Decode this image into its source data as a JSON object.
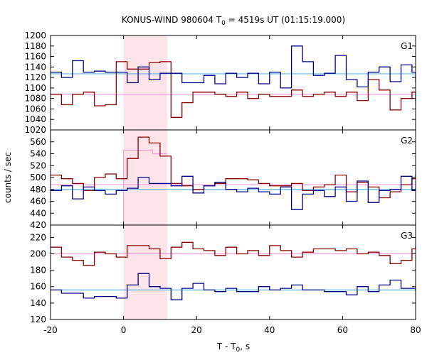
{
  "title": {
    "prefix": "KONUS-WIND 980604 T",
    "sub": "0",
    "suffix": " = 4519s UT (01:15:19.000)"
  },
  "xlabel": {
    "prefix": "T - T",
    "sub": "0",
    "suffix": ", s"
  },
  "ylabel": "counts / sec",
  "colors": {
    "red": "#8b0000",
    "blue": "#00008b",
    "pink_line": "#ff9ad5",
    "cyan_line": "#5fb7e8",
    "shade": "#fde4e8"
  },
  "chart_data": {
    "type": "line",
    "subtype": "step",
    "shared_x": {
      "range": [
        -20,
        80
      ],
      "ticks": [
        -20,
        0,
        20,
        40,
        60,
        80
      ],
      "tick_labels": [
        "-20",
        "0",
        "20",
        "40",
        "60",
        "80"
      ]
    },
    "bin_edges": [
      -20,
      -17,
      -14,
      -11,
      -8,
      -5,
      -2,
      1,
      4,
      7,
      10,
      13,
      16,
      19,
      22,
      25,
      28,
      31,
      34,
      37,
      40,
      43,
      46,
      49,
      52,
      55,
      58,
      61,
      64,
      67,
      70,
      73,
      76,
      79,
      80
    ],
    "shaded_interval": [
      0,
      12
    ],
    "panels": [
      {
        "label": "G1",
        "ylim": [
          1020,
          1200
        ],
        "yticks": [
          1020,
          1040,
          1060,
          1080,
          1100,
          1120,
          1140,
          1160,
          1180,
          1200
        ],
        "ytick_labels": [
          "1020",
          "1040",
          "1060",
          "1080",
          "1100",
          "1120",
          "1140",
          "1160",
          "1180",
          "1200"
        ],
        "series": [
          {
            "color": "red",
            "values": [
              1088,
              1068,
              1088,
              1092,
              1066,
              1068,
              1150,
              1136,
              1136,
              1148,
              1150,
              1044,
              1072,
              1092,
              1092,
              1088,
              1084,
              1092,
              1080,
              1088,
              1084,
              1084,
              1096,
              1084,
              1088,
              1092,
              1084,
              1092,
              1076,
              1116,
              1096,
              1058,
              1080,
              1092,
              1068
            ]
          },
          {
            "color": "blue",
            "values": [
              1130,
              1120,
              1152,
              1130,
              1132,
              1130,
              1130,
              1110,
              1140,
              1116,
              1128,
              1128,
              1110,
              1110,
              1124,
              1108,
              1128,
              1120,
              1128,
              1108,
              1130,
              1100,
              1180,
              1150,
              1124,
              1128,
              1162,
              1116,
              1102,
              1130,
              1140,
              1112,
              1144,
              1130,
              1110
            ]
          }
        ],
        "baselines": [
          {
            "color": "cyan_line",
            "value": 1127
          },
          {
            "color": "pink_line",
            "value": 1088
          }
        ]
      },
      {
        "label": "G2",
        "ylim": [
          420,
          580
        ],
        "yticks": [
          420,
          440,
          460,
          480,
          500,
          520,
          540,
          560
        ],
        "ytick_labels": [
          "420",
          "440",
          "460",
          "480",
          "500",
          "520",
          "540",
          "560"
        ],
        "series": [
          {
            "color": "red",
            "values": [
              504,
              498,
              490,
              478,
              500,
              506,
              498,
              532,
              568,
              558,
              536,
              490,
              486,
              480,
              486,
              490,
              498,
              498,
              496,
              490,
              486,
              486,
              490,
              478,
              484,
              488,
              504,
              476,
              492,
              484,
              466,
              476,
              488,
              498,
              506
            ]
          },
          {
            "color": "blue",
            "values": [
              478,
              486,
              464,
              484,
              478,
              472,
              478,
              482,
              500,
              490,
              490,
              486,
              502,
              474,
              486,
              492,
              480,
              476,
              482,
              476,
              472,
              484,
              446,
              472,
              478,
              468,
              484,
              460,
              494,
              458,
              478,
              480,
              502,
              478,
              482
            ]
          }
        ],
        "baselines": [
          {
            "color": "pink_line",
            "value": 488
          },
          {
            "color": "cyan_line",
            "value": 480
          }
        ],
        "overlays": [
          {
            "color": "pink_line",
            "x_start": 0,
            "x_end": 12,
            "values": [
              546,
              546,
              540
            ]
          }
        ]
      },
      {
        "label": "G3",
        "ylim": [
          120,
          235
        ],
        "yticks": [
          120,
          140,
          160,
          180,
          200,
          220
        ],
        "ytick_labels": [
          "120",
          "140",
          "160",
          "180",
          "200",
          "220"
        ],
        "series": [
          {
            "color": "red",
            "values": [
              208,
              196,
              192,
              186,
              202,
              200,
              196,
              210,
              210,
              206,
              194,
              208,
              214,
              206,
              204,
              198,
              208,
              200,
              204,
              198,
              210,
              204,
              196,
              202,
              206,
              206,
              204,
              206,
              200,
              202,
              198,
              188,
              192,
              206,
              210
            ]
          },
          {
            "color": "blue",
            "values": [
              156,
              152,
              152,
              146,
              148,
              148,
              146,
              162,
              176,
              160,
              158,
              144,
              158,
              164,
              156,
              154,
              158,
              154,
              154,
              160,
              156,
              158,
              162,
              156,
              156,
              154,
              154,
              150,
              160,
              154,
              162,
              168,
              158,
              158,
              154
            ]
          }
        ],
        "baselines": [
          {
            "color": "pink_line",
            "value": 200
          },
          {
            "color": "cyan_line",
            "value": 156
          }
        ]
      }
    ]
  }
}
